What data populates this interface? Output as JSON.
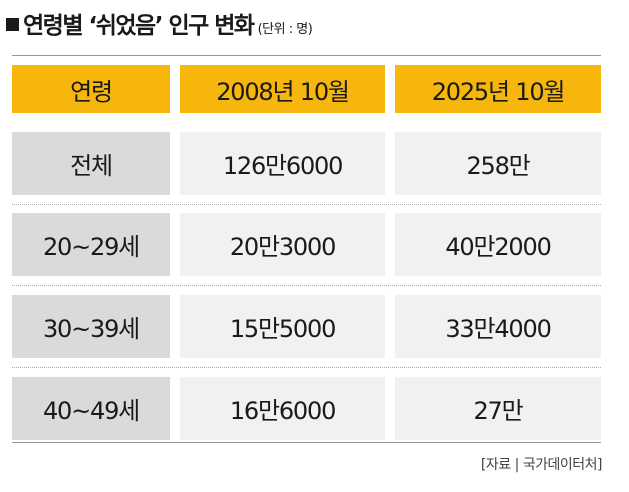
{
  "header": {
    "title": "연령별 ‘쉬었음’ 인구 변화",
    "unit": "(단위 : 명)"
  },
  "table": {
    "columns": [
      "연령",
      "2008년 10월",
      "2025년 10월"
    ],
    "rows": [
      [
        "전체",
        "126만6000",
        "258만"
      ],
      [
        "20~29세",
        "20만3000",
        "40만2000"
      ],
      [
        "30~39세",
        "15만5000",
        "33만4000"
      ],
      [
        "40~49세",
        "16만6000",
        "27만"
      ]
    ]
  },
  "source": "[자료 | 국가데이터처]"
}
